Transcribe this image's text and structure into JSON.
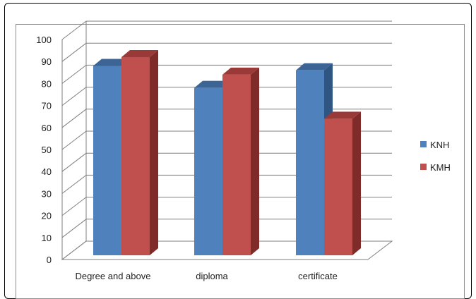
{
  "chart_data": {
    "type": "bar",
    "categories": [
      "Degree and above",
      "diploma",
      "certificate"
    ],
    "series": [
      {
        "name": "KNH",
        "values": [
          88,
          78,
          86
        ]
      },
      {
        "name": "KMH",
        "values": [
          92,
          84,
          64
        ]
      }
    ],
    "yticks": [
      0,
      10,
      20,
      30,
      40,
      50,
      60,
      70,
      80,
      90,
      100
    ],
    "ylim": [
      0,
      100
    ],
    "grid": true,
    "legend_position": "right",
    "colors": {
      "KNH": {
        "front": "#4f81bd",
        "side": "#2f5582",
        "top": "#3c6596"
      },
      "KMH": {
        "front": "#c0504d",
        "side": "#7f2b29",
        "top": "#9a3a38"
      },
      "grid": "#7f7f7f",
      "walls": "#7f7f7f"
    }
  }
}
